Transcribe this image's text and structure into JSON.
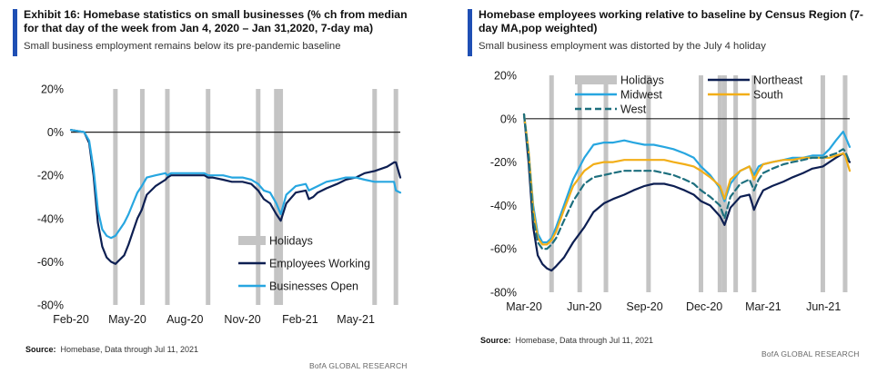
{
  "colors": {
    "holidays": "#c4c4c4",
    "employees": "#0d1f52",
    "businesses": "#27a6e0",
    "northeast": "#0d1f52",
    "midwest": "#27a6e0",
    "south": "#f2ae17",
    "west": "#1d6f7e",
    "accent": "#1f4fb4"
  },
  "left": {
    "title": "Exhibit 16: Homebase statistics on small businesses (% ch from median for that day of the week from Jan 4, 2020 – Jan 31,2020, 7-day ma)",
    "subtitle": "Small business employment remains below its pre-pandemic baseline",
    "source_label": "Source:",
    "source_text": "Homebase, Data through Jul 11, 2021",
    "branding": "BofA GLOBAL RESEARCH"
  },
  "right": {
    "title": "Homebase employees working relative to baseline by Census Region (7-day MA,pop weighted)",
    "subtitle": "Small business employment was distorted by the July 4 holiday",
    "source_label": "Source:",
    "source_text": "Homebase, Data through Jul 11, 2021"
  },
  "chart_data": [
    {
      "type": "line",
      "x_type": "date",
      "x_range": [
        "2020-02-01",
        "2021-07-11"
      ],
      "ylim": [
        -80,
        20
      ],
      "y_ticks": [
        20,
        0,
        -20,
        -40,
        -60,
        -80
      ],
      "y_tick_labels": [
        "20%",
        "0%",
        "-20%",
        "-40%",
        "-60%",
        "-80%"
      ],
      "x_ticks": [
        "2020-02-01",
        "2020-05-01",
        "2020-08-01",
        "2020-11-01",
        "2021-02-01",
        "2021-05-01"
      ],
      "x_tick_labels": [
        "Feb-20",
        "May-20",
        "Aug-20",
        "Nov-20",
        "Feb-21",
        "May-21"
      ],
      "zero_line": true,
      "legend_position": "bottom-right",
      "holidays_label": "Holidays",
      "holidays": [
        "2020-04-12",
        "2020-05-25",
        "2020-07-04",
        "2020-09-07",
        "2020-11-26",
        "2020-12-25",
        "2021-01-01",
        "2021-05-31",
        "2021-07-04"
      ],
      "series": [
        {
          "name": "Employees Working",
          "color_key": "employees",
          "x": [
            "2020-02-01",
            "2020-02-22",
            "2020-03-01",
            "2020-03-08",
            "2020-03-15",
            "2020-03-22",
            "2020-03-29",
            "2020-04-05",
            "2020-04-12",
            "2020-04-19",
            "2020-04-26",
            "2020-05-03",
            "2020-05-10",
            "2020-05-17",
            "2020-05-24",
            "2020-06-01",
            "2020-06-15",
            "2020-07-01",
            "2020-07-04",
            "2020-07-10",
            "2020-07-25",
            "2020-08-10",
            "2020-09-01",
            "2020-09-07",
            "2020-09-14",
            "2020-10-01",
            "2020-10-15",
            "2020-11-01",
            "2020-11-15",
            "2020-11-26",
            "2020-12-05",
            "2020-12-15",
            "2020-12-25",
            "2021-01-01",
            "2021-01-10",
            "2021-01-25",
            "2021-02-10",
            "2021-02-15",
            "2021-02-22",
            "2021-03-01",
            "2021-03-15",
            "2021-04-01",
            "2021-04-15",
            "2021-05-01",
            "2021-05-15",
            "2021-05-31",
            "2021-06-10",
            "2021-06-20",
            "2021-07-01",
            "2021-07-04",
            "2021-07-11"
          ],
          "y": [
            1,
            0,
            -5,
            -20,
            -42,
            -53,
            -58,
            -60,
            -61,
            -59,
            -57,
            -52,
            -46,
            -40,
            -36,
            -29,
            -25,
            -22,
            -21,
            -20,
            -20,
            -20,
            -20,
            -21,
            -21,
            -22,
            -23,
            -23,
            -24,
            -27,
            -31,
            -33,
            -38,
            -41,
            -33,
            -28,
            -27,
            -31,
            -30,
            -28,
            -26,
            -24,
            -22,
            -21,
            -19,
            -18,
            -17,
            -16,
            -14,
            -14,
            -21
          ]
        },
        {
          "name": "Businesses Open",
          "color_key": "businesses",
          "x": [
            "2020-02-01",
            "2020-02-22",
            "2020-03-01",
            "2020-03-08",
            "2020-03-15",
            "2020-03-22",
            "2020-03-29",
            "2020-04-05",
            "2020-04-12",
            "2020-04-19",
            "2020-04-26",
            "2020-05-03",
            "2020-05-10",
            "2020-05-17",
            "2020-05-24",
            "2020-06-01",
            "2020-06-15",
            "2020-07-01",
            "2020-07-04",
            "2020-07-10",
            "2020-07-25",
            "2020-08-10",
            "2020-09-01",
            "2020-09-07",
            "2020-09-14",
            "2020-10-01",
            "2020-10-15",
            "2020-11-01",
            "2020-11-15",
            "2020-11-26",
            "2020-12-05",
            "2020-12-15",
            "2020-12-25",
            "2021-01-01",
            "2021-01-10",
            "2021-01-25",
            "2021-02-10",
            "2021-02-15",
            "2021-02-22",
            "2021-03-01",
            "2021-03-15",
            "2021-04-01",
            "2021-04-15",
            "2021-05-01",
            "2021-05-15",
            "2021-05-31",
            "2021-06-10",
            "2021-06-20",
            "2021-07-01",
            "2021-07-04",
            "2021-07-11"
          ],
          "y": [
            1,
            0,
            -4,
            -17,
            -36,
            -45,
            -48,
            -49,
            -48,
            -45,
            -42,
            -38,
            -33,
            -28,
            -25,
            -21,
            -20,
            -19,
            -20,
            -19,
            -19,
            -19,
            -19,
            -20,
            -20,
            -20,
            -21,
            -21,
            -22,
            -24,
            -27,
            -28,
            -33,
            -38,
            -29,
            -25,
            -24,
            -27,
            -26,
            -25,
            -23,
            -22,
            -21,
            -21,
            -22,
            -23,
            -23,
            -23,
            -23,
            -27,
            -28
          ]
        }
      ]
    },
    {
      "type": "line",
      "x_type": "date",
      "x_range": [
        "2020-03-01",
        "2021-07-11"
      ],
      "ylim": [
        -80,
        20
      ],
      "y_ticks": [
        20,
        0,
        -20,
        -40,
        -60,
        -80
      ],
      "y_tick_labels": [
        "20%",
        "0%",
        "-20%",
        "-40%",
        "-60%",
        "-80%"
      ],
      "x_ticks": [
        "2020-03-01",
        "2020-06-01",
        "2020-09-01",
        "2020-12-01",
        "2021-03-01",
        "2021-06-01"
      ],
      "x_tick_labels": [
        "Mar-20",
        "Jun-20",
        "Sep-20",
        "Dec-20",
        "Mar-21",
        "Jun-21"
      ],
      "zero_line": true,
      "legend_position": "top",
      "holidays_label": "Holidays",
      "holidays": [
        "2020-04-12",
        "2020-05-25",
        "2020-07-04",
        "2020-09-07",
        "2020-11-26",
        "2020-12-25",
        "2021-01-01",
        "2021-01-18",
        "2021-02-15",
        "2021-05-31",
        "2021-07-04"
      ],
      "series": [
        {
          "name": "Northeast",
          "color_key": "northeast",
          "dash": false,
          "x": [
            "2020-03-01",
            "2020-03-08",
            "2020-03-15",
            "2020-03-22",
            "2020-03-29",
            "2020-04-05",
            "2020-04-12",
            "2020-04-19",
            "2020-05-01",
            "2020-05-15",
            "2020-06-01",
            "2020-06-15",
            "2020-07-01",
            "2020-07-15",
            "2020-08-01",
            "2020-08-15",
            "2020-09-01",
            "2020-09-15",
            "2020-10-01",
            "2020-10-15",
            "2020-11-01",
            "2020-11-15",
            "2020-11-26",
            "2020-12-10",
            "2020-12-25",
            "2021-01-01",
            "2021-01-10",
            "2021-01-25",
            "2021-02-08",
            "2021-02-15",
            "2021-02-22",
            "2021-03-01",
            "2021-03-15",
            "2021-04-01",
            "2021-04-15",
            "2021-05-01",
            "2021-05-15",
            "2021-05-31",
            "2021-06-10",
            "2021-06-20",
            "2021-07-01",
            "2021-07-04",
            "2021-07-11"
          ],
          "y": [
            2,
            -20,
            -50,
            -63,
            -67,
            -69,
            -70,
            -68,
            -64,
            -57,
            -50,
            -43,
            -39,
            -37,
            -35,
            -33,
            -31,
            -30,
            -30,
            -31,
            -33,
            -35,
            -38,
            -40,
            -45,
            -49,
            -41,
            -36,
            -35,
            -42,
            -37,
            -33,
            -31,
            -29,
            -27,
            -25,
            -23,
            -22,
            -20,
            -18,
            -16,
            -17,
            -20
          ]
        },
        {
          "name": "Midwest",
          "color_key": "midwest",
          "dash": false,
          "x": [
            "2020-03-01",
            "2020-03-08",
            "2020-03-15",
            "2020-03-22",
            "2020-03-29",
            "2020-04-05",
            "2020-04-12",
            "2020-04-19",
            "2020-05-01",
            "2020-05-15",
            "2020-06-01",
            "2020-06-15",
            "2020-07-01",
            "2020-07-15",
            "2020-08-01",
            "2020-08-15",
            "2020-09-01",
            "2020-09-15",
            "2020-10-01",
            "2020-10-15",
            "2020-11-01",
            "2020-11-15",
            "2020-11-26",
            "2020-12-10",
            "2020-12-25",
            "2021-01-01",
            "2021-01-10",
            "2021-01-25",
            "2021-02-08",
            "2021-02-15",
            "2021-02-22",
            "2021-03-01",
            "2021-03-15",
            "2021-04-01",
            "2021-04-15",
            "2021-05-01",
            "2021-05-15",
            "2021-05-31",
            "2021-06-10",
            "2021-06-20",
            "2021-07-01",
            "2021-07-04",
            "2021-07-11"
          ],
          "y": [
            2,
            -15,
            -40,
            -53,
            -57,
            -57,
            -55,
            -50,
            -40,
            -28,
            -18,
            -12,
            -11,
            -11,
            -10,
            -11,
            -12,
            -12,
            -13,
            -14,
            -16,
            -18,
            -22,
            -26,
            -32,
            -38,
            -30,
            -24,
            -22,
            -26,
            -22,
            -21,
            -20,
            -19,
            -18,
            -18,
            -17,
            -17,
            -14,
            -10,
            -6,
            -8,
            -13
          ]
        },
        {
          "name": "South",
          "color_key": "south",
          "dash": false,
          "x": [
            "2020-03-01",
            "2020-03-08",
            "2020-03-15",
            "2020-03-22",
            "2020-03-29",
            "2020-04-05",
            "2020-04-12",
            "2020-04-19",
            "2020-05-01",
            "2020-05-15",
            "2020-06-01",
            "2020-06-15",
            "2020-07-01",
            "2020-07-15",
            "2020-08-01",
            "2020-08-15",
            "2020-09-01",
            "2020-09-15",
            "2020-10-01",
            "2020-10-15",
            "2020-11-01",
            "2020-11-15",
            "2020-11-26",
            "2020-12-10",
            "2020-12-25",
            "2021-01-01",
            "2021-01-10",
            "2021-01-25",
            "2021-02-08",
            "2021-02-15",
            "2021-02-22",
            "2021-03-01",
            "2021-03-15",
            "2021-04-01",
            "2021-04-15",
            "2021-05-01",
            "2021-05-15",
            "2021-05-31",
            "2021-06-10",
            "2021-06-20",
            "2021-07-01",
            "2021-07-04",
            "2021-07-11"
          ],
          "y": [
            2,
            -15,
            -42,
            -55,
            -58,
            -58,
            -56,
            -52,
            -42,
            -31,
            -24,
            -21,
            -20,
            -20,
            -19,
            -19,
            -19,
            -19,
            -19,
            -20,
            -21,
            -22,
            -24,
            -27,
            -31,
            -37,
            -28,
            -24,
            -22,
            -28,
            -24,
            -21,
            -20,
            -19,
            -19,
            -18,
            -18,
            -18,
            -18,
            -17,
            -16,
            -17,
            -24
          ]
        },
        {
          "name": "West",
          "color_key": "west",
          "dash": true,
          "x": [
            "2020-03-01",
            "2020-03-08",
            "2020-03-15",
            "2020-03-22",
            "2020-03-29",
            "2020-04-05",
            "2020-04-12",
            "2020-04-19",
            "2020-05-01",
            "2020-05-15",
            "2020-06-01",
            "2020-06-15",
            "2020-07-01",
            "2020-07-15",
            "2020-08-01",
            "2020-08-15",
            "2020-09-01",
            "2020-09-15",
            "2020-10-01",
            "2020-10-15",
            "2020-11-01",
            "2020-11-15",
            "2020-11-26",
            "2020-12-10",
            "2020-12-25",
            "2021-01-01",
            "2021-01-10",
            "2021-01-25",
            "2021-02-08",
            "2021-02-15",
            "2021-02-22",
            "2021-03-01",
            "2021-03-15",
            "2021-04-01",
            "2021-04-15",
            "2021-05-01",
            "2021-05-15",
            "2021-05-31",
            "2021-06-10",
            "2021-06-20",
            "2021-07-01",
            "2021-07-04",
            "2021-07-11"
          ],
          "y": [
            2,
            -17,
            -46,
            -57,
            -60,
            -60,
            -58,
            -55,
            -47,
            -38,
            -30,
            -27,
            -26,
            -25,
            -24,
            -24,
            -24,
            -24,
            -25,
            -26,
            -28,
            -30,
            -33,
            -36,
            -40,
            -46,
            -36,
            -30,
            -28,
            -33,
            -28,
            -25,
            -23,
            -21,
            -20,
            -19,
            -18,
            -18,
            -17,
            -16,
            -14,
            -15,
            -20
          ]
        }
      ]
    }
  ]
}
